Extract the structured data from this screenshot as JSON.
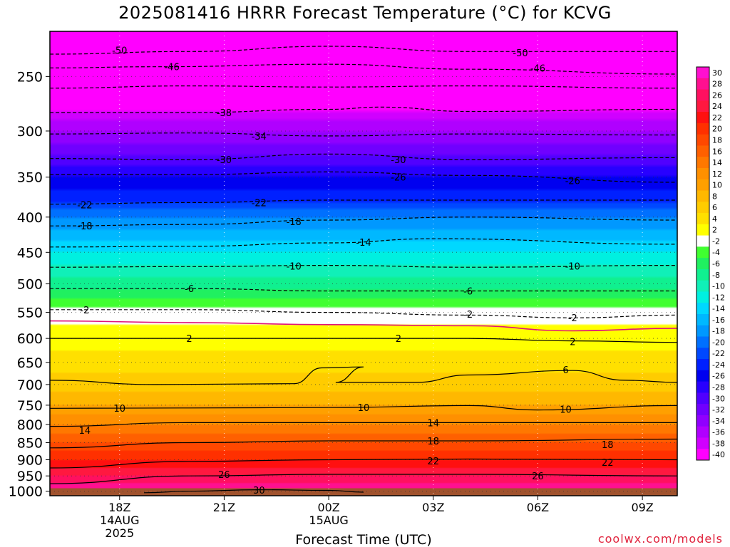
{
  "title": "2025081416 HRRR Forecast Temperature (°C) for KCVG",
  "credit": "coolwx.com/models",
  "colors": {
    "ground": "#a0522d",
    "freezing_line": "#e0137a",
    "credit": "#e0223c"
  },
  "chart_data": {
    "type": "heatmap",
    "title": "2025081416 HRRR Forecast Temperature (°C) for KCVG",
    "xlabel": "Forecast Time (UTC)",
    "ylabel": "",
    "x_ticks": [
      {
        "hour": 18,
        "lines": [
          "18Z",
          "14AUG",
          "2025"
        ]
      },
      {
        "hour": 21,
        "lines": [
          "21Z"
        ]
      },
      {
        "hour": 24,
        "lines": [
          "00Z",
          "15AUG"
        ]
      },
      {
        "hour": 27,
        "lines": [
          "03Z"
        ]
      },
      {
        "hour": 30,
        "lines": [
          "06Z"
        ]
      },
      {
        "hour": 33,
        "lines": [
          "09Z"
        ]
      }
    ],
    "x_range_hours": [
      16,
      34
    ],
    "y_ticks_hpa": [
      250,
      300,
      350,
      400,
      450,
      500,
      550,
      600,
      650,
      700,
      750,
      800,
      850,
      900,
      950,
      1000
    ],
    "y_range_hpa": [
      1015,
      200
    ],
    "y_scale": "log-pressure",
    "ground_level_hpa": 990,
    "colorbar": {
      "labels": [
        "30",
        "28",
        "26",
        "24",
        "22",
        "20",
        "18",
        "16",
        "14",
        "12",
        "10",
        "8",
        "6",
        "4",
        "2",
        "-2",
        "-4",
        "-6",
        "-8",
        "-10",
        "-12",
        "-14",
        "-16",
        "-18",
        "-20",
        "-22",
        "-24",
        "-26",
        "-28",
        "-30",
        "-32",
        "-34",
        "-36",
        "-38",
        "-40"
      ],
      "colors": [
        "#ff10d0",
        "#ff1090",
        "#ff1060",
        "#ff1840",
        "#ff1010",
        "#ff3000",
        "#ff4800",
        "#ff6000",
        "#ff7800",
        "#ff9000",
        "#ffa000",
        "#ffb800",
        "#ffcc00",
        "#ffe000",
        "#ffff00",
        "#ffffff",
        "#40ff30",
        "#20f060",
        "#10f090",
        "#10f0b8",
        "#00f0e0",
        "#00d8ff",
        "#00b8ff",
        "#0098ff",
        "#0070ff",
        "#0048ff",
        "#0020ff",
        "#0000f0",
        "#2800ff",
        "#5000ff",
        "#7000ff",
        "#9000ff",
        "#b000ff",
        "#d000ff",
        "#ff00ff"
      ]
    },
    "temperature_profile": [
      {
        "hpa": 200,
        "t": -54
      },
      {
        "hpa": 225,
        "t": -48
      },
      {
        "hpa": 250,
        "t": -43
      },
      {
        "hpa": 275,
        "t": -39
      },
      {
        "hpa": 300,
        "t": -34
      },
      {
        "hpa": 325,
        "t": -30
      },
      {
        "hpa": 350,
        "t": -26
      },
      {
        "hpa": 375,
        "t": -23
      },
      {
        "hpa": 400,
        "t": -18
      },
      {
        "hpa": 450,
        "t": -12
      },
      {
        "hpa": 500,
        "t": -7
      },
      {
        "hpa": 550,
        "t": -1
      },
      {
        "hpa": 575,
        "t": 1
      },
      {
        "hpa": 600,
        "t": 3
      },
      {
        "hpa": 650,
        "t": 5
      },
      {
        "hpa": 700,
        "t": 7
      },
      {
        "hpa": 750,
        "t": 10
      },
      {
        "hpa": 800,
        "t": 14
      },
      {
        "hpa": 850,
        "t": 18
      },
      {
        "hpa": 900,
        "t": 22
      },
      {
        "hpa": 950,
        "t": 26
      },
      {
        "hpa": 1000,
        "t": 30
      }
    ],
    "contours": [
      {
        "value": -50,
        "dashed": true,
        "points": [
          [
            16,
            232
          ],
          [
            20,
            230
          ],
          [
            24,
            226
          ],
          [
            28,
            230
          ],
          [
            34,
            230
          ]
        ],
        "labels": [
          [
            18,
            229
          ],
          [
            29.5,
            231
          ]
        ]
      },
      {
        "value": -46,
        "dashed": true,
        "points": [
          [
            16,
            243
          ],
          [
            19,
            242
          ],
          [
            24,
            240
          ],
          [
            28,
            244
          ],
          [
            34,
            248
          ]
        ],
        "labels": [
          [
            19.5,
            242
          ],
          [
            30,
            243
          ]
        ]
      },
      {
        "value": -42,
        "dashed": true,
        "points": [
          [
            16,
            260
          ],
          [
            20,
            258
          ],
          [
            24,
            259
          ],
          [
            28,
            258
          ],
          [
            34,
            260
          ]
        ],
        "labels": []
      },
      {
        "value": -38,
        "dashed": true,
        "points": [
          [
            16,
            282
          ],
          [
            20,
            282
          ],
          [
            24,
            279
          ],
          [
            25.5,
            277
          ],
          [
            28,
            281
          ],
          [
            34,
            279
          ]
        ],
        "labels": [
          [
            21,
            282
          ]
        ]
      },
      {
        "value": -34,
        "dashed": true,
        "points": [
          [
            16,
            303
          ],
          [
            20,
            302
          ],
          [
            24,
            305
          ],
          [
            28,
            303
          ],
          [
            34,
            304
          ]
        ],
        "labels": [
          [
            22,
            305
          ]
        ]
      },
      {
        "value": -30,
        "dashed": true,
        "points": [
          [
            16,
            329
          ],
          [
            20,
            330
          ],
          [
            24,
            324
          ],
          [
            28,
            330
          ],
          [
            34,
            328
          ]
        ],
        "labels": [
          [
            21,
            330
          ],
          [
            26,
            330
          ]
        ]
      },
      {
        "value": -26,
        "dashed": true,
        "points": [
          [
            16,
            347
          ],
          [
            20,
            347
          ],
          [
            24,
            344
          ],
          [
            28,
            348
          ],
          [
            34,
            356
          ]
        ],
        "labels": [
          [
            26,
            350
          ],
          [
            31,
            354
          ]
        ]
      },
      {
        "value": -22,
        "dashed": true,
        "points": [
          [
            16,
            383
          ],
          [
            20,
            381
          ],
          [
            24,
            378
          ],
          [
            28,
            378
          ],
          [
            34,
            378
          ]
        ],
        "labels": [
          [
            17,
            384
          ],
          [
            22,
            381
          ]
        ]
      },
      {
        "value": -18,
        "dashed": true,
        "points": [
          [
            16,
            412
          ],
          [
            20,
            410
          ],
          [
            24,
            404
          ],
          [
            28,
            400
          ],
          [
            34,
            404
          ]
        ],
        "labels": [
          [
            17,
            412
          ],
          [
            23,
            406
          ]
        ]
      },
      {
        "value": -14,
        "dashed": true,
        "points": [
          [
            16,
            442
          ],
          [
            20,
            441
          ],
          [
            24,
            436
          ],
          [
            27,
            430
          ],
          [
            34,
            438
          ]
        ],
        "labels": [
          [
            25,
            435
          ]
        ]
      },
      {
        "value": -10,
        "dashed": true,
        "points": [
          [
            16,
            473
          ],
          [
            20,
            472
          ],
          [
            24,
            470
          ],
          [
            28,
            473
          ],
          [
            34,
            470
          ]
        ],
        "labels": [
          [
            23,
            471
          ],
          [
            31,
            471
          ]
        ]
      },
      {
        "value": -6,
        "dashed": true,
        "points": [
          [
            16,
            508
          ],
          [
            20,
            508
          ],
          [
            24,
            512
          ],
          [
            28,
            512
          ],
          [
            34,
            512
          ]
        ],
        "labels": [
          [
            20,
            508
          ],
          [
            28,
            512
          ]
        ]
      },
      {
        "value": -2,
        "dashed": true,
        "points": [
          [
            16,
            545
          ],
          [
            20,
            545
          ],
          [
            24,
            550
          ],
          [
            28,
            555
          ],
          [
            31,
            560
          ],
          [
            34,
            555
          ]
        ],
        "labels": [
          [
            17,
            545
          ],
          [
            28,
            553
          ],
          [
            31,
            560
          ]
        ]
      },
      {
        "value": 0,
        "dashed": false,
        "freezing": true,
        "points": [
          [
            16,
            566
          ],
          [
            20,
            569
          ],
          [
            24,
            573
          ],
          [
            28,
            575
          ],
          [
            31,
            585
          ],
          [
            34,
            580
          ]
        ],
        "labels": []
      },
      {
        "value": 2,
        "dashed": false,
        "points": [
          [
            16,
            600
          ],
          [
            20,
            600
          ],
          [
            24,
            600
          ],
          [
            28,
            600
          ],
          [
            31,
            605
          ],
          [
            34,
            608
          ]
        ],
        "labels": [
          [
            20,
            600
          ],
          [
            26,
            600
          ],
          [
            31,
            606
          ]
        ]
      },
      {
        "value": 6,
        "dashed": false,
        "points": [
          [
            16,
            690
          ],
          [
            19,
            700
          ],
          [
            23,
            698
          ],
          [
            23.8,
            662
          ],
          [
            25,
            660
          ],
          [
            24.2,
            695
          ],
          [
            26.5,
            695
          ],
          [
            28,
            678
          ],
          [
            31,
            668
          ],
          [
            32.5,
            690
          ],
          [
            34,
            695
          ]
        ],
        "labels": [
          [
            30.8,
            666
          ]
        ]
      },
      {
        "value": 10,
        "dashed": false,
        "points": [
          [
            16,
            758
          ],
          [
            20,
            757
          ],
          [
            24,
            756
          ],
          [
            28,
            751
          ],
          [
            30,
            762
          ],
          [
            34,
            751
          ]
        ],
        "labels": [
          [
            18,
            757
          ],
          [
            25,
            756
          ],
          [
            30.8,
            760
          ]
        ]
      },
      {
        "value": 14,
        "dashed": false,
        "points": [
          [
            16,
            805
          ],
          [
            20,
            795
          ],
          [
            24,
            795
          ],
          [
            28,
            795
          ],
          [
            34,
            795
          ]
        ],
        "labels": [
          [
            17,
            815
          ],
          [
            27,
            795
          ]
        ]
      },
      {
        "value": 18,
        "dashed": false,
        "points": [
          [
            16,
            865
          ],
          [
            20,
            850
          ],
          [
            24,
            845
          ],
          [
            28,
            845
          ],
          [
            34,
            840
          ]
        ],
        "labels": [
          [
            27,
            845
          ],
          [
            32,
            855
          ]
        ]
      },
      {
        "value": 22,
        "dashed": false,
        "points": [
          [
            16,
            925
          ],
          [
            20,
            905
          ],
          [
            24,
            900
          ],
          [
            28,
            898
          ],
          [
            34,
            900
          ]
        ],
        "labels": [
          [
            27,
            903
          ],
          [
            32,
            908
          ]
        ]
      },
      {
        "value": 26,
        "dashed": false,
        "points": [
          [
            16,
            975
          ],
          [
            20,
            950
          ],
          [
            24,
            945
          ],
          [
            28,
            945
          ],
          [
            34,
            950
          ]
        ],
        "labels": [
          [
            21,
            945
          ],
          [
            30,
            950
          ]
        ]
      },
      {
        "value": 30,
        "dashed": false,
        "points": [
          [
            18.7,
            1005
          ],
          [
            20,
            1000
          ],
          [
            22,
            995
          ],
          [
            24,
            997
          ],
          [
            25,
            1003
          ]
        ],
        "labels": [
          [
            22,
            996
          ]
        ]
      }
    ]
  }
}
